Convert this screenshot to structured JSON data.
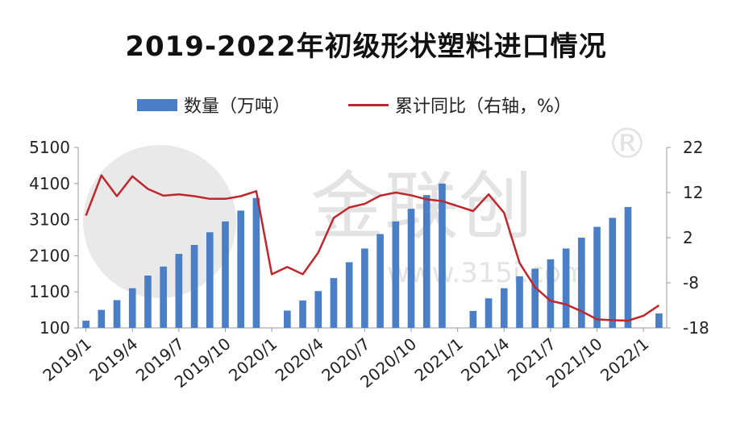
{
  "title": "2019-2022年初级形状塑料进口情况",
  "watermark": {
    "text": "金联创",
    "url": "www.315i.com",
    "mark": "®"
  },
  "colors": {
    "bar": "#4a7fc8",
    "line": "#c0272d",
    "axis": "#999999"
  },
  "chart_data": {
    "type": "bar+line",
    "series": [
      {
        "name": "数量（万吨）",
        "type": "bar",
        "axis": "left",
        "values": [
          300,
          600,
          870,
          1200,
          1550,
          1800,
          2150,
          2400,
          2750,
          3050,
          3350,
          3700,
          null,
          580,
          860,
          1120,
          1480,
          1920,
          2300,
          2700,
          3050,
          3400,
          3780,
          4100,
          null,
          570,
          920,
          1200,
          1530,
          1740,
          2000,
          2300,
          2600,
          2900,
          3150,
          3450,
          null,
          500
        ]
      },
      {
        "name": "累计同比（右轴，%）",
        "type": "line",
        "axis": "right",
        "values": [
          6.9,
          15.8,
          11.2,
          15.6,
          12.8,
          11.3,
          11.6,
          11.2,
          10.6,
          10.6,
          11.2,
          12.3,
          -6.1,
          -4.5,
          -6.1,
          -1.3,
          6.4,
          8.7,
          9.5,
          11.3,
          12.0,
          11.4,
          10.5,
          10.1,
          9.0,
          7.9,
          11.6,
          7.5,
          -3.6,
          -9.0,
          -12.0,
          -12.8,
          -14.3,
          -16.1,
          -16.3,
          -16.4,
          -15.3,
          -13.0
        ]
      }
    ],
    "x_labels": [
      "2019/1",
      "2019/4",
      "2019/7",
      "2019/10",
      "2020/1",
      "2020/4",
      "2020/7",
      "2020/10",
      "2021/1",
      "2021/4",
      "2021/7",
      "2021/10",
      "2022/1"
    ],
    "y_left": {
      "min": 100,
      "max": 5100,
      "ticks": [
        100,
        1100,
        2100,
        3100,
        4100,
        5100
      ]
    },
    "y_right": {
      "min": -18,
      "max": 22,
      "ticks": [
        -18,
        -8,
        2,
        12,
        22
      ]
    },
    "legend_position": "top",
    "grid": false
  }
}
